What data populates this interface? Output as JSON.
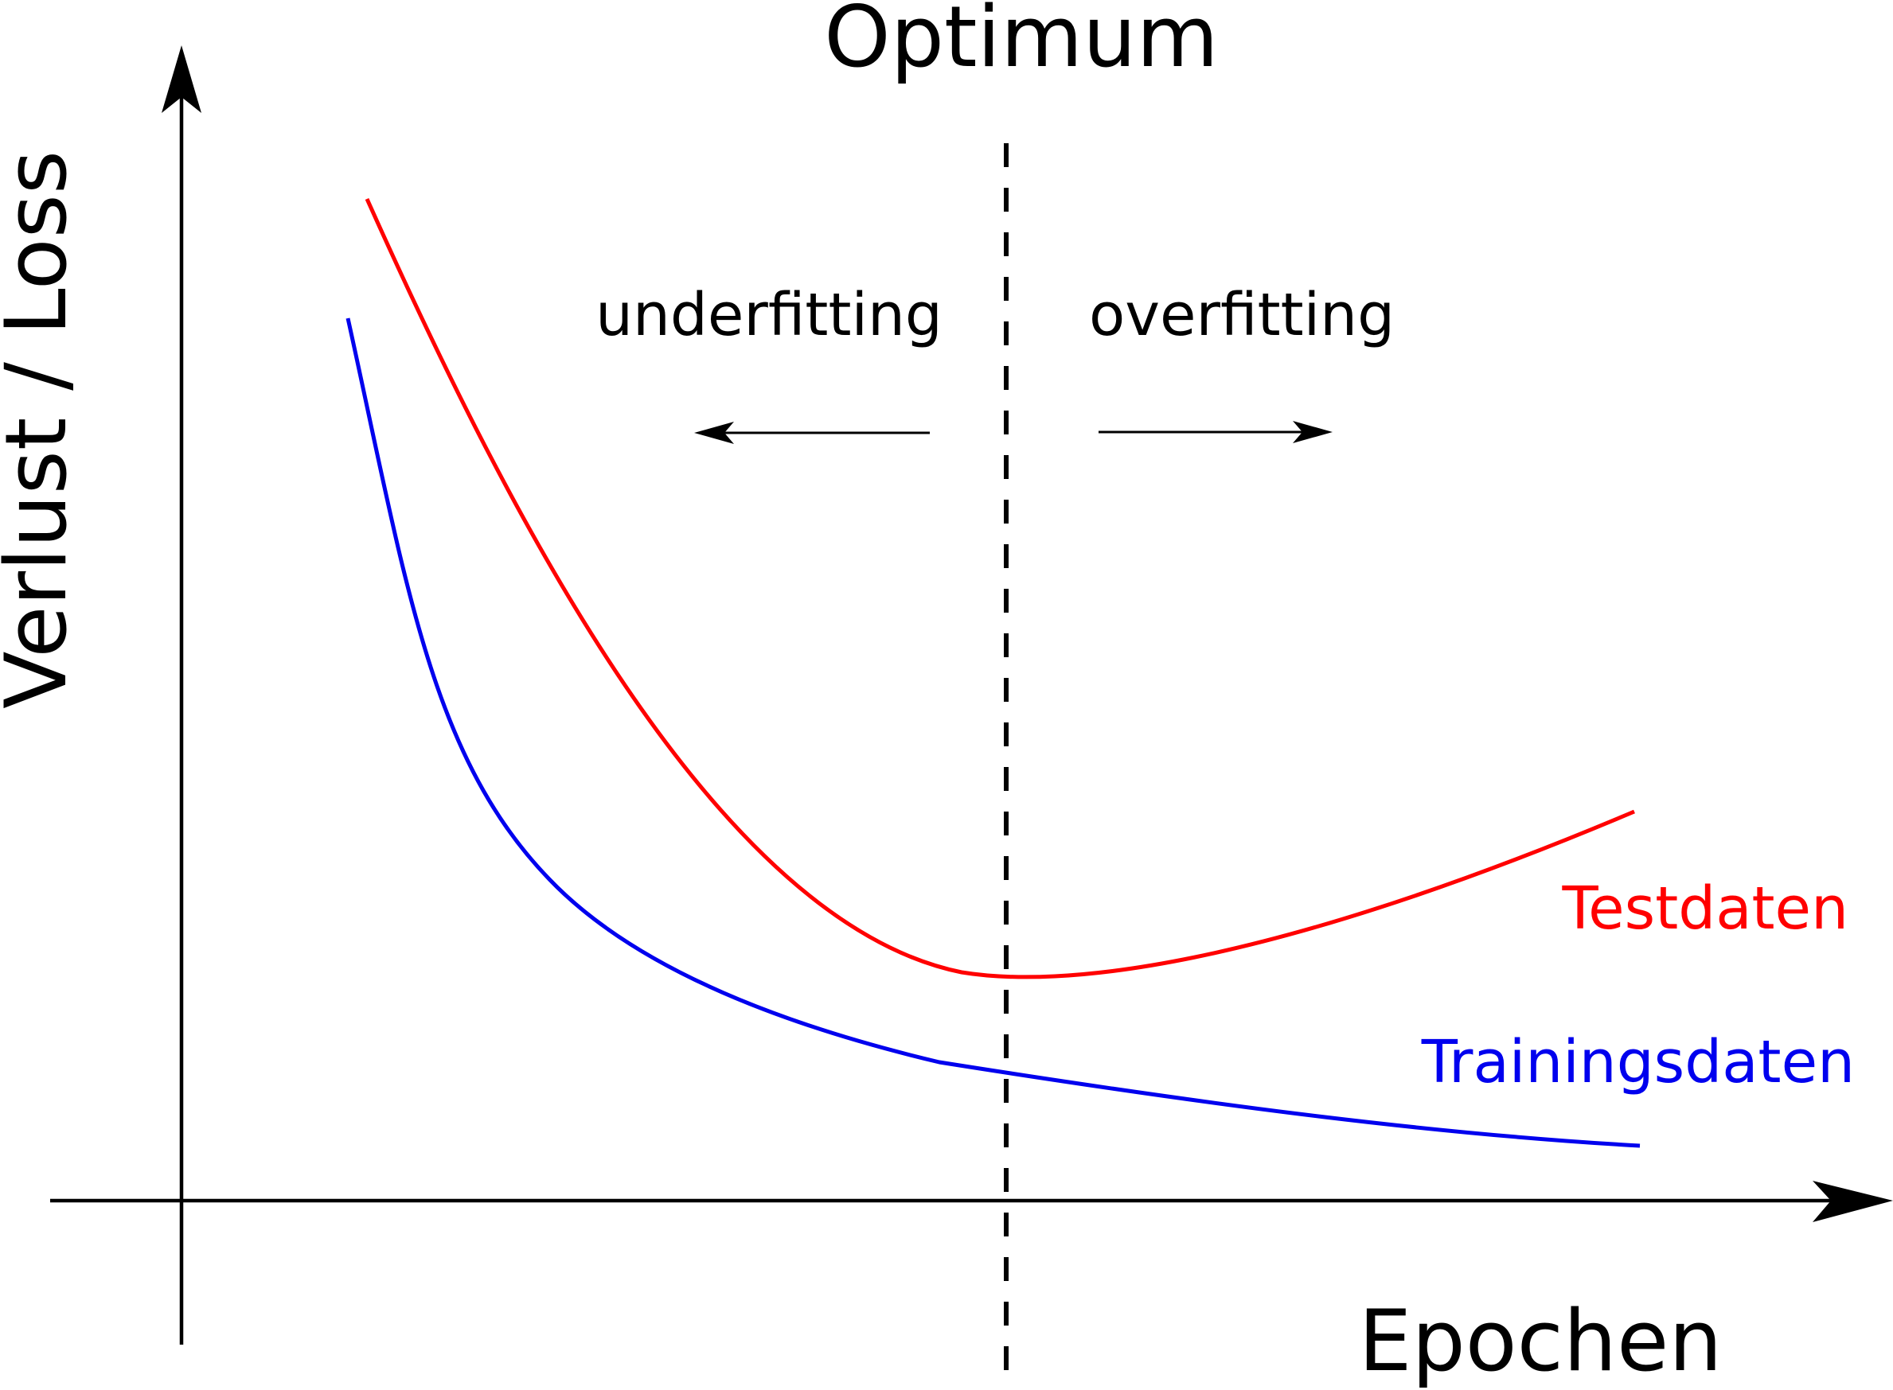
{
  "labels": {
    "optimum": "Optimum",
    "y_axis": "Verlust / Loss",
    "x_axis": "Epochen",
    "underfitting": "underfitting",
    "overfitting": "overfitting"
  },
  "series": [
    {
      "name": "Testdaten",
      "color": "#ff0000"
    },
    {
      "name": "Trainingsdaten",
      "color": "#0000ee"
    }
  ],
  "colors": {
    "axes": "#000000",
    "optimum_line": "#000000",
    "background": "#ffffff"
  }
}
